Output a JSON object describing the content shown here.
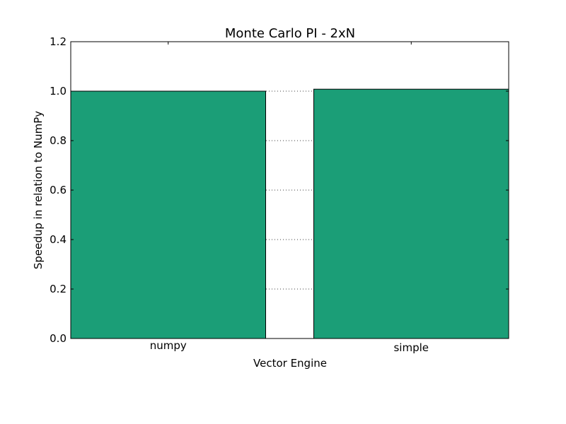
{
  "chart_data": {
    "type": "bar",
    "title": "Monte Carlo PI - 2xN",
    "xlabel": "Vector Engine",
    "ylabel": "Speedup in relation to NumPy",
    "categories": [
      "numpy",
      "simple"
    ],
    "values": [
      1.0,
      1.008
    ],
    "ylim": [
      0,
      1.2
    ],
    "yticks": [
      "0.0",
      "0.2",
      "0.4",
      "0.6",
      "0.8",
      "1.0",
      "1.2"
    ],
    "grid": "y-dotted",
    "bar_color": "#1b9e77"
  }
}
